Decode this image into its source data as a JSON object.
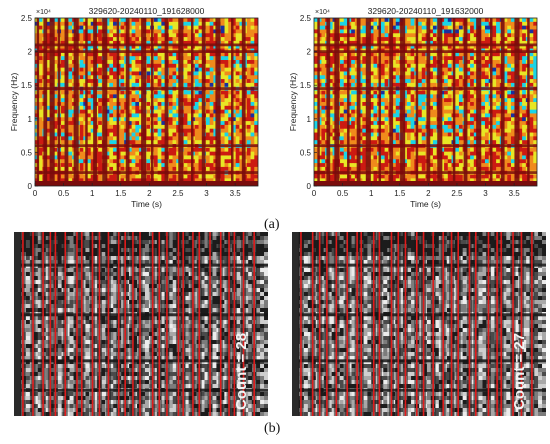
{
  "figure": {
    "label_a": "(a)",
    "label_b": "(b)"
  },
  "chart_data": [
    {
      "type": "heatmap",
      "panel": "a-left",
      "title": "329620-20240110_191628000",
      "xlabel": "Time (s)",
      "ylabel": "Frequency (Hz)",
      "y_exponent_label": "×10⁴",
      "xlim": [
        0,
        3.9
      ],
      "ylim": [
        0,
        25000
      ],
      "x_ticks": [
        "0",
        "0.5",
        "1",
        "1.5",
        "2",
        "2.5",
        "3",
        "3.5"
      ],
      "x_tick_values": [
        0,
        0.5,
        1,
        1.5,
        2,
        2.5,
        3,
        3.5
      ],
      "y_ticks": [
        "0",
        "0.5",
        "1",
        "1.5",
        "2",
        "2.5"
      ],
      "y_tick_values": [
        0,
        5000,
        10000,
        15000,
        20000,
        25000
      ],
      "colormap": [
        "#1a2f9e",
        "#1ad4e8",
        "#e8e625",
        "#f08a1c",
        "#cc1a12",
        "#7a0c0c"
      ],
      "vertical_band_times_s": [
        0.05,
        0.18,
        0.3,
        0.42,
        0.55,
        0.72,
        0.9,
        1.05,
        1.22,
        1.45,
        1.62,
        1.9,
        2.05,
        2.3,
        2.55,
        2.75,
        2.95,
        3.2,
        3.45,
        3.65
      ],
      "horizontal_band_freqs_hz": [
        2000,
        6000,
        14500,
        20000,
        21000
      ]
    },
    {
      "type": "heatmap",
      "panel": "a-right",
      "title": "329620-20240110_191632000",
      "xlabel": "Time (s)",
      "ylabel": "Frequency (Hz)",
      "y_exponent_label": "×10⁴",
      "xlim": [
        0,
        3.9
      ],
      "ylim": [
        0,
        25000
      ],
      "x_ticks": [
        "0",
        "0.5",
        "1",
        "1.5",
        "2",
        "2.5",
        "3",
        "3.5"
      ],
      "x_tick_values": [
        0,
        0.5,
        1,
        1.5,
        2,
        2.5,
        3,
        3.5
      ],
      "y_ticks": [
        "0",
        "0.5",
        "1",
        "1.5",
        "2",
        "2.5"
      ],
      "y_tick_values": [
        0,
        5000,
        10000,
        15000,
        20000,
        25000
      ],
      "colormap": [
        "#1a2f9e",
        "#1ad4e8",
        "#e8e625",
        "#f08a1c",
        "#cc1a12",
        "#7a0c0c"
      ],
      "vertical_band_times_s": [
        0.08,
        0.25,
        0.4,
        0.6,
        0.78,
        0.95,
        1.15,
        1.35,
        1.55,
        1.8,
        2.0,
        2.2,
        2.45,
        2.65,
        2.88,
        3.1,
        3.3,
        3.55,
        3.75
      ],
      "horizontal_band_freqs_hz": [
        2000,
        6000,
        14500,
        20000,
        21000
      ]
    },
    {
      "type": "heatmap",
      "panel": "b-left",
      "colormap": [
        "#111111",
        "#ffffff"
      ],
      "overlay": "red vertical detection lines",
      "annotation": "Count = 28",
      "red_line_count": 28
    },
    {
      "type": "heatmap",
      "panel": "b-right",
      "colormap": [
        "#111111",
        "#ffffff"
      ],
      "overlay": "red vertical detection lines",
      "annotation": "Count = 27",
      "red_line_count": 27
    }
  ]
}
